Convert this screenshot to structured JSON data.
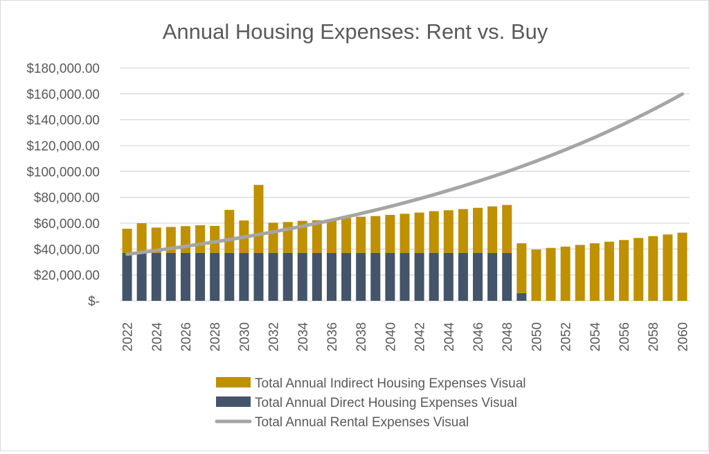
{
  "chart_data": {
    "type": "bar",
    "stacked": true,
    "title": "Annual Housing Expenses: Rent vs. Buy",
    "xlabel": "",
    "ylabel": "",
    "ylim": [
      0,
      180000
    ],
    "y_ticks": [
      0,
      20000,
      40000,
      60000,
      80000,
      100000,
      120000,
      140000,
      160000,
      180000
    ],
    "y_tick_labels": [
      "$-",
      "$20,000.00",
      "$40,000.00",
      "$60,000.00",
      "$80,000.00",
      "$100,000.00",
      "$120,000.00",
      "$140,000.00",
      "$160,000.00",
      "$180,000.00"
    ],
    "grid": true,
    "legend_position": "bottom",
    "categories": [
      2022,
      2023,
      2024,
      2025,
      2026,
      2027,
      2028,
      2029,
      2030,
      2031,
      2032,
      2033,
      2034,
      2035,
      2036,
      2037,
      2038,
      2039,
      2040,
      2041,
      2042,
      2043,
      2044,
      2045,
      2046,
      2047,
      2048,
      2049,
      2050,
      2051,
      2052,
      2053,
      2054,
      2055,
      2056,
      2057,
      2058,
      2059,
      2060
    ],
    "x_tick_labels": [
      "2022",
      "2024",
      "2026",
      "2028",
      "2030",
      "2032",
      "2034",
      "2036",
      "2038",
      "2040",
      "2042",
      "2044",
      "2046",
      "2048",
      "2050",
      "2052",
      "2054",
      "2056",
      "2058",
      "2060"
    ],
    "series": [
      {
        "name": "Total Annual Direct Housing Expenses Visual",
        "kind": "bar",
        "color": "#44546a",
        "values": [
          37000,
          37000,
          37000,
          37000,
          37000,
          37000,
          37000,
          37000,
          37000,
          37000,
          37000,
          37000,
          37000,
          37000,
          37000,
          37000,
          37000,
          37000,
          37000,
          37000,
          37000,
          37000,
          37000,
          37000,
          37000,
          37000,
          37000,
          6000,
          0,
          0,
          0,
          0,
          0,
          0,
          0,
          0,
          0,
          0,
          0
        ]
      },
      {
        "name": "Total Annual Indirect Housing Expenses Visual",
        "kind": "bar",
        "color": "#bf9000",
        "values": [
          18700,
          23000,
          19600,
          20100,
          20700,
          21400,
          20900,
          33300,
          25100,
          52600,
          23400,
          23900,
          24800,
          25300,
          26000,
          27000,
          28000,
          28500,
          29400,
          30300,
          31200,
          32300,
          33000,
          33900,
          34900,
          36000,
          37100,
          38500,
          39600,
          40900,
          41900,
          43200,
          44500,
          45700,
          47000,
          48600,
          50000,
          51300,
          52700
        ]
      },
      {
        "name": "Total Annual Rental Expenses Visual",
        "kind": "line",
        "color": "#a5a5a5",
        "values": [
          36000,
          37440,
          38938,
          40495,
          42115,
          43800,
          45552,
          47374,
          49269,
          51239,
          53289,
          55421,
          57637,
          59943,
          62341,
          64835,
          67428,
          70125,
          72930,
          75847,
          78881,
          82036,
          85318,
          88730,
          92280,
          95971,
          99810,
          103802,
          107954,
          112272,
          116763,
          121434,
          126291,
          131343,
          136596,
          142060,
          147743,
          153652,
          159798
        ]
      }
    ]
  },
  "legend": [
    {
      "label": "Total Annual Indirect Housing Expenses Visual",
      "color": "#bf9000",
      "swatch": "box"
    },
    {
      "label": "Total Annual Direct Housing Expenses Visual",
      "color": "#44546a",
      "swatch": "box"
    },
    {
      "label": "Total Annual Rental Expenses Visual",
      "color": "#a5a5a5",
      "swatch": "line"
    }
  ]
}
